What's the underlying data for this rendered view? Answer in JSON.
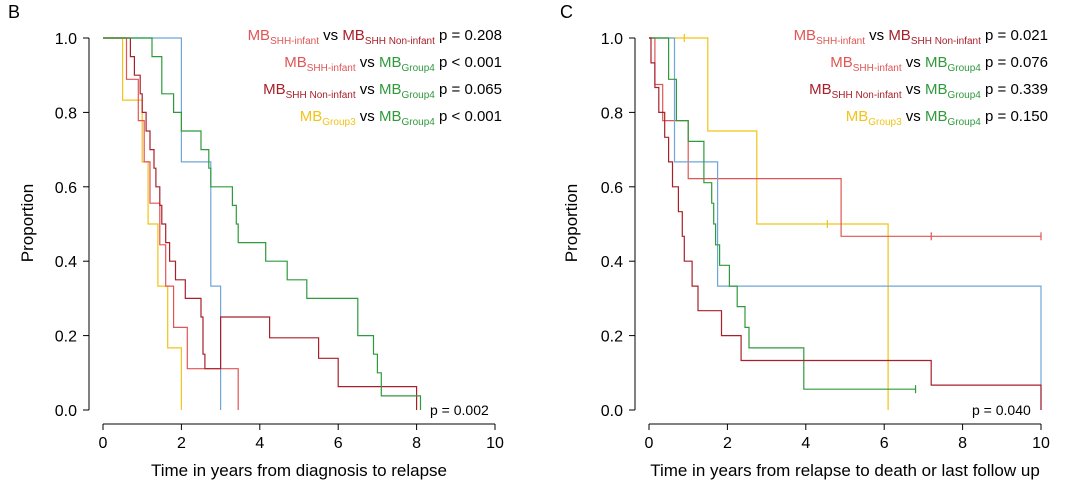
{
  "colors": {
    "shh_infant": "#e05555",
    "shh_noninfant": "#a8202a",
    "group4": "#2f9a3c",
    "group3": "#f2c318",
    "blue": "#6ea6d8"
  },
  "labels": {
    "mb": "MB",
    "vs": "vs",
    "shh_infant_sub": "SHH-infant",
    "shh_noninfant_sub": "SHH Non-infant",
    "group4_sub": "Group4",
    "group3_sub": "Group3"
  },
  "chart_data": [
    {
      "panel": "B",
      "type": "line",
      "step": true,
      "xlabel": "Time in years from diagnosis to relapse",
      "ylabel": "Proportion",
      "xlim": [
        0,
        10
      ],
      "ylim": [
        0,
        1.0
      ],
      "xticks": [
        "0",
        "2",
        "4",
        "6",
        "8",
        "10"
      ],
      "yticks": [
        "0.0",
        "0.2",
        "0.4",
        "0.6",
        "0.8",
        "1.0"
      ],
      "overall_p": "p = 0.002",
      "legend": [
        {
          "a": "shh_infant",
          "b": "shh_noninfant",
          "p": "p = 0.208"
        },
        {
          "a": "shh_infant",
          "b": "group4",
          "p": "p < 0.001"
        },
        {
          "a": "shh_noninfant",
          "b": "group4",
          "p": "p = 0.065"
        },
        {
          "a": "group3",
          "b": "group4",
          "p": "p < 0.001"
        }
      ],
      "series": [
        {
          "name": "blue",
          "points": [
            [
              0,
              1.0
            ],
            [
              2.0,
              1.0
            ],
            [
              2.0,
              0.667
            ],
            [
              2.75,
              0.667
            ],
            [
              2.75,
              0.333
            ],
            [
              3.0,
              0.333
            ],
            [
              3.0,
              0.0
            ]
          ],
          "censors": []
        },
        {
          "name": "group3",
          "points": [
            [
              0,
              1.0
            ],
            [
              0.5,
              1.0
            ],
            [
              0.5,
              0.833
            ],
            [
              1.0,
              0.833
            ],
            [
              1.0,
              0.667
            ],
            [
              1.15,
              0.667
            ],
            [
              1.15,
              0.5
            ],
            [
              1.4,
              0.5
            ],
            [
              1.4,
              0.333
            ],
            [
              1.65,
              0.333
            ],
            [
              1.65,
              0.167
            ],
            [
              2.0,
              0.167
            ],
            [
              2.0,
              0.0
            ]
          ],
          "censors": []
        },
        {
          "name": "shh_infant",
          "points": [
            [
              0,
              1.0
            ],
            [
              0.6,
              1.0
            ],
            [
              0.6,
              0.889
            ],
            [
              0.9,
              0.889
            ],
            [
              0.9,
              0.778
            ],
            [
              1.05,
              0.778
            ],
            [
              1.05,
              0.667
            ],
            [
              1.2,
              0.667
            ],
            [
              1.2,
              0.556
            ],
            [
              1.45,
              0.556
            ],
            [
              1.45,
              0.444
            ],
            [
              1.6,
              0.444
            ],
            [
              1.6,
              0.333
            ],
            [
              1.8,
              0.333
            ],
            [
              1.8,
              0.222
            ],
            [
              2.15,
              0.222
            ],
            [
              2.15,
              0.111
            ],
            [
              3.45,
              0.111
            ],
            [
              3.45,
              0.0
            ]
          ],
          "censors": []
        },
        {
          "name": "shh_noninfant",
          "points": [
            [
              0,
              1.0
            ],
            [
              0.7,
              1.0
            ],
            [
              0.7,
              0.95
            ],
            [
              0.8,
              0.95
            ],
            [
              0.8,
              0.9
            ],
            [
              0.95,
              0.9
            ],
            [
              0.95,
              0.85
            ],
            [
              1.0,
              0.85
            ],
            [
              1.0,
              0.8
            ],
            [
              1.1,
              0.8
            ],
            [
              1.1,
              0.75
            ],
            [
              1.2,
              0.75
            ],
            [
              1.2,
              0.7
            ],
            [
              1.3,
              0.7
            ],
            [
              1.3,
              0.65
            ],
            [
              1.35,
              0.65
            ],
            [
              1.35,
              0.6
            ],
            [
              1.45,
              0.6
            ],
            [
              1.45,
              0.55
            ],
            [
              1.5,
              0.55
            ],
            [
              1.5,
              0.5
            ],
            [
              1.6,
              0.5
            ],
            [
              1.6,
              0.45
            ],
            [
              1.7,
              0.45
            ],
            [
              1.7,
              0.4
            ],
            [
              1.85,
              0.4
            ],
            [
              1.85,
              0.35
            ],
            [
              2.1,
              0.35
            ],
            [
              2.1,
              0.3
            ],
            [
              2.5,
              0.3
            ],
            [
              2.5,
              0.25
            ],
            [
              2.55,
              0.25
            ],
            [
              2.55,
              0.15
            ],
            [
              2.6,
              0.15
            ],
            [
              2.6,
              0.111
            ],
            [
              3.0,
              0.111
            ],
            [
              3.0,
              0.25
            ],
            [
              4.25,
              0.25
            ],
            [
              4.25,
              0.194
            ],
            [
              5.5,
              0.194
            ],
            [
              5.5,
              0.139
            ],
            [
              6.0,
              0.139
            ],
            [
              6.0,
              0.063
            ],
            [
              8.0,
              0.063
            ],
            [
              8.0,
              0.0
            ]
          ],
          "censors": []
        },
        {
          "name": "group4",
          "points": [
            [
              0,
              1.0
            ],
            [
              1.25,
              1.0
            ],
            [
              1.25,
              0.95
            ],
            [
              1.5,
              0.95
            ],
            [
              1.5,
              0.85
            ],
            [
              1.8,
              0.85
            ],
            [
              1.8,
              0.8
            ],
            [
              2.0,
              0.8
            ],
            [
              2.0,
              0.75
            ],
            [
              2.5,
              0.75
            ],
            [
              2.5,
              0.7
            ],
            [
              2.7,
              0.7
            ],
            [
              2.7,
              0.65
            ],
            [
              2.75,
              0.65
            ],
            [
              2.75,
              0.6
            ],
            [
              3.3,
              0.6
            ],
            [
              3.3,
              0.55
            ],
            [
              3.4,
              0.55
            ],
            [
              3.4,
              0.5
            ],
            [
              3.45,
              0.5
            ],
            [
              3.45,
              0.45
            ],
            [
              4.15,
              0.45
            ],
            [
              4.15,
              0.4
            ],
            [
              4.7,
              0.4
            ],
            [
              4.7,
              0.35
            ],
            [
              5.2,
              0.35
            ],
            [
              5.2,
              0.3
            ],
            [
              6.5,
              0.3
            ],
            [
              6.5,
              0.2
            ],
            [
              6.9,
              0.2
            ],
            [
              6.9,
              0.15
            ],
            [
              7.0,
              0.15
            ],
            [
              7.0,
              0.1
            ],
            [
              7.1,
              0.1
            ],
            [
              7.1,
              0.038
            ],
            [
              8.1,
              0.038
            ],
            [
              8.1,
              0.0
            ]
          ],
          "censors": []
        }
      ]
    },
    {
      "panel": "C",
      "type": "line",
      "step": true,
      "xlabel": "Time in years from relapse to death or last follow up",
      "ylabel": "Proportion",
      "xlim": [
        0,
        10
      ],
      "ylim": [
        0,
        1.0
      ],
      "xticks": [
        "0",
        "2",
        "4",
        "6",
        "8",
        "10"
      ],
      "yticks": [
        "0.0",
        "0.2",
        "0.4",
        "0.6",
        "0.8",
        "1.0"
      ],
      "overall_p": "p = 0.040",
      "legend": [
        {
          "a": "shh_infant",
          "b": "shh_noninfant",
          "p": "p = 0.021"
        },
        {
          "a": "shh_infant",
          "b": "group4",
          "p": "p = 0.076"
        },
        {
          "a": "shh_noninfant",
          "b": "group4",
          "p": "p = 0.339"
        },
        {
          "a": "group3",
          "b": "group4",
          "p": "p = 0.150"
        }
      ],
      "series": [
        {
          "name": "group3",
          "points": [
            [
              0,
              1.0
            ],
            [
              1.5,
              1.0
            ],
            [
              1.5,
              0.75
            ],
            [
              2.75,
              0.75
            ],
            [
              2.75,
              0.5
            ],
            [
              6.1,
              0.5
            ],
            [
              6.1,
              0.0
            ]
          ],
          "censors": [
            [
              0.9,
              1.0
            ],
            [
              4.55,
              0.5
            ]
          ]
        },
        {
          "name": "shh_infant",
          "points": [
            [
              0,
              1.0
            ],
            [
              0.15,
              1.0
            ],
            [
              0.15,
              0.875
            ],
            [
              0.35,
              0.875
            ],
            [
              0.35,
              0.778
            ],
            [
              1.0,
              0.778
            ],
            [
              1.0,
              0.622
            ],
            [
              4.9,
              0.622
            ],
            [
              4.9,
              0.467
            ],
            [
              10.0,
              0.467
            ]
          ],
          "censors": [
            [
              7.2,
              0.467
            ],
            [
              10.0,
              0.467
            ]
          ]
        },
        {
          "name": "blue",
          "points": [
            [
              0,
              1.0
            ],
            [
              0.65,
              1.0
            ],
            [
              0.65,
              0.667
            ],
            [
              1.75,
              0.667
            ],
            [
              1.75,
              0.333
            ],
            [
              10.0,
              0.333
            ],
            [
              10.0,
              0.0
            ]
          ],
          "censors": []
        },
        {
          "name": "group4",
          "points": [
            [
              0,
              1.0
            ],
            [
              0.5,
              1.0
            ],
            [
              0.5,
              0.889
            ],
            [
              0.7,
              0.889
            ],
            [
              0.7,
              0.778
            ],
            [
              1.0,
              0.778
            ],
            [
              1.0,
              0.722
            ],
            [
              1.4,
              0.722
            ],
            [
              1.4,
              0.611
            ],
            [
              1.6,
              0.611
            ],
            [
              1.6,
              0.556
            ],
            [
              1.65,
              0.556
            ],
            [
              1.65,
              0.5
            ],
            [
              1.7,
              0.5
            ],
            [
              1.7,
              0.444
            ],
            [
              1.8,
              0.444
            ],
            [
              1.8,
              0.389
            ],
            [
              2.05,
              0.389
            ],
            [
              2.05,
              0.333
            ],
            [
              2.25,
              0.333
            ],
            [
              2.25,
              0.278
            ],
            [
              2.45,
              0.278
            ],
            [
              2.45,
              0.222
            ],
            [
              2.55,
              0.222
            ],
            [
              2.55,
              0.167
            ],
            [
              3.95,
              0.167
            ],
            [
              3.95,
              0.056
            ],
            [
              6.8,
              0.056
            ]
          ],
          "censors": [
            [
              6.8,
              0.056
            ]
          ]
        },
        {
          "name": "shh_noninfant",
          "points": [
            [
              0,
              1.0
            ],
            [
              0.05,
              1.0
            ],
            [
              0.05,
              0.933
            ],
            [
              0.15,
              0.933
            ],
            [
              0.15,
              0.867
            ],
            [
              0.25,
              0.867
            ],
            [
              0.25,
              0.8
            ],
            [
              0.4,
              0.8
            ],
            [
              0.4,
              0.733
            ],
            [
              0.5,
              0.733
            ],
            [
              0.5,
              0.667
            ],
            [
              0.6,
              0.667
            ],
            [
              0.6,
              0.6
            ],
            [
              0.75,
              0.6
            ],
            [
              0.75,
              0.533
            ],
            [
              0.85,
              0.533
            ],
            [
              0.85,
              0.467
            ],
            [
              0.9,
              0.467
            ],
            [
              0.9,
              0.4
            ],
            [
              1.1,
              0.4
            ],
            [
              1.1,
              0.333
            ],
            [
              1.25,
              0.333
            ],
            [
              1.25,
              0.267
            ],
            [
              1.85,
              0.267
            ],
            [
              1.85,
              0.2
            ],
            [
              2.35,
              0.2
            ],
            [
              2.35,
              0.133
            ],
            [
              7.2,
              0.133
            ],
            [
              7.2,
              0.067
            ],
            [
              10.0,
              0.067
            ],
            [
              10.0,
              0.0
            ]
          ],
          "censors": []
        }
      ]
    }
  ]
}
